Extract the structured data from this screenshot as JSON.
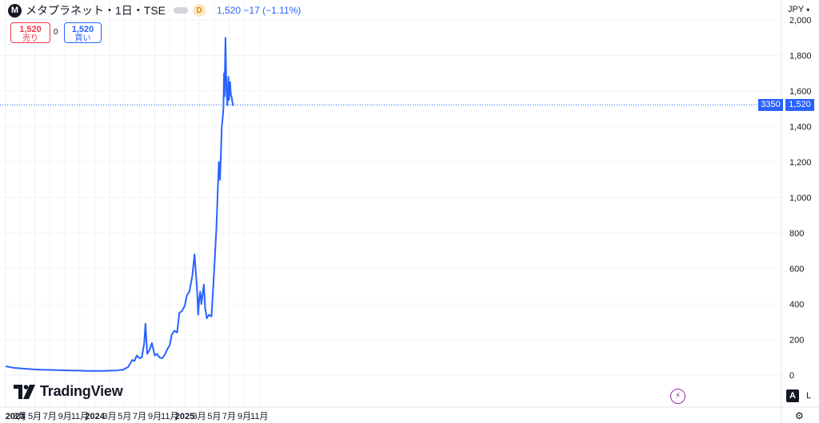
{
  "header": {
    "symbol_icon": "M",
    "title": "メタプラネット・1日・TSE",
    "interval_badge": "D",
    "last_price": "1,520",
    "change": "−17",
    "change_pct": "(−1.11%)",
    "brand_color": "#2962ff",
    "icons": [
      "symbol-logo-icon",
      "visibility-toggle-icon",
      "delay-d-icon"
    ]
  },
  "order_panel": {
    "sell_price": "1,520",
    "sell_label": "売り",
    "spread": "0",
    "buy_price": "1,520",
    "buy_label": "買い"
  },
  "price_scale": {
    "currency": "JPY",
    "position_qty": "3350",
    "last_price_label": "1,520"
  },
  "footer": {
    "brand": "TradingView",
    "auto_label": "A",
    "log_label": "L",
    "icons": [
      "tradingview-logo-icon",
      "lightning-icon",
      "settings-icon"
    ]
  },
  "chart_data": {
    "type": "line",
    "line_color": "#2962ff",
    "y_axis": {
      "ticks": [
        "0",
        "200",
        "400",
        "600",
        "800",
        "1,000",
        "1,200",
        "1,400",
        "1,600",
        "1,800",
        "2,000"
      ],
      "ylim": [
        0,
        2000
      ],
      "position": "right"
    },
    "x_axis": {
      "ticks": [
        "2023",
        "3月",
        "5月",
        "7月",
        "9月",
        "11月",
        "2024",
        "3月",
        "5月",
        "7月",
        "9月",
        "11月",
        "2025",
        "3月",
        "5月",
        "7月",
        "9月",
        "11月"
      ],
      "bold_ticks": [
        "2023",
        "2024",
        "2025"
      ]
    },
    "grid": true,
    "series": [
      {
        "x": [
          "2023-01-02",
          "2023-02-01",
          "2023-03-01",
          "2023-04-01",
          "2023-05-01",
          "2023-06-01",
          "2023-07-01",
          "2023-08-01",
          "2023-09-01",
          "2023-10-01",
          "2023-11-01",
          "2023-12-01",
          "2024-01-01",
          "2024-02-01",
          "2024-03-01",
          "2024-04-01",
          "2024-04-15",
          "2024-04-20",
          "2024-05-01",
          "2024-05-15",
          "2024-06-01",
          "2024-06-10",
          "2024-06-20",
          "2024-07-01",
          "2024-07-10",
          "2024-07-20",
          "2024-07-25",
          "2024-08-01",
          "2024-08-10",
          "2024-08-20",
          "2024-09-01",
          "2024-09-10",
          "2024-09-20",
          "2024-10-01",
          "2024-10-10",
          "2024-10-20",
          "2024-11-01",
          "2024-11-10",
          "2024-11-20",
          "2024-12-01",
          "2024-12-10",
          "2024-12-20",
          "2025-01-01",
          "2025-01-10",
          "2025-01-20",
          "2025-02-01",
          "2025-02-10",
          "2025-02-15",
          "2025-02-20",
          "2025-02-25",
          "2025-03-01",
          "2025-03-05",
          "2025-03-10",
          "2025-03-20",
          "2025-03-25",
          "2025-04-01",
          "2025-04-10",
          "2025-04-20",
          "2025-05-01",
          "2025-05-10",
          "2025-05-20",
          "2025-05-25",
          "2025-06-01",
          "2025-06-05",
          "2025-06-08",
          "2025-06-10",
          "2025-06-12",
          "2025-06-16",
          "2025-06-20",
          "2025-06-24",
          "2025-06-28",
          "2025-07-01",
          "2025-07-05",
          "2025-07-08",
          "2025-07-12",
          "2025-07-16",
          "2025-07-20"
        ],
        "values": [
          50,
          42,
          38,
          35,
          32,
          30,
          29,
          28,
          27,
          26,
          25,
          24,
          24,
          24,
          25,
          26,
          30,
          28,
          35,
          45,
          85,
          80,
          110,
          95,
          100,
          180,
          290,
          120,
          140,
          180,
          110,
          120,
          100,
          95,
          110,
          140,
          170,
          230,
          250,
          240,
          350,
          360,
          390,
          450,
          470,
          560,
          680,
          580,
          490,
          340,
          430,
          470,
          400,
          510,
          380,
          320,
          340,
          330,
          590,
          820,
          1200,
          1100,
          1400,
          1450,
          1510,
          1700,
          1570,
          1900,
          1610,
          1520,
          1680,
          1550,
          1650,
          1580,
          1560,
          1520,
          1520
        ]
      }
    ]
  }
}
